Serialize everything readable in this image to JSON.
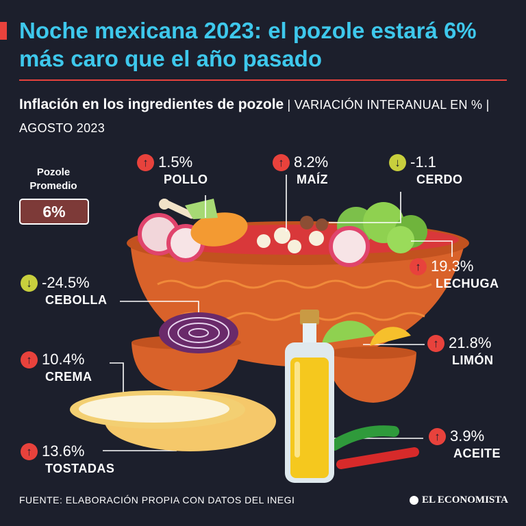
{
  "header": {
    "title": "Noche mexicana 2023: el pozole estará 6% más caro que el año pasado",
    "subtitle_strong": "Inflación en los ingredientes de pozole",
    "subtitle_rest": " | VARIACIÓN INTERANUAL EN % | AGOSTO 2023"
  },
  "average": {
    "label": "Pozole Promedio",
    "value": "6%"
  },
  "colors": {
    "background": "#1c1f2c",
    "title": "#3ec8ec",
    "increase": "#e8423c",
    "decrease": "#c8cf3d",
    "bowl": "#d9622a"
  },
  "chart_data": {
    "type": "bar",
    "title": "Inflación en los ingredientes de pozole",
    "subtitle": "VARIACIÓN INTERANUAL EN % | AGOSTO 2023",
    "categories": [
      "POLLO",
      "MAÍZ",
      "CERDO",
      "LECHUGA",
      "CEBOLLA",
      "LIMÓN",
      "CREMA",
      "TOSTADAS",
      "ACEITE"
    ],
    "values": [
      1.5,
      8.2,
      -1.1,
      19.3,
      -24.5,
      21.8,
      10.4,
      13.6,
      3.9
    ],
    "value_labels": [
      "1.5%",
      "8.2%",
      "-1.1",
      "19.3%",
      "-24.5%",
      "21.8%",
      "10.4%",
      "13.6%",
      "3.9%"
    ],
    "directions": [
      "up",
      "up",
      "down",
      "up",
      "down",
      "up",
      "up",
      "up",
      "up"
    ],
    "average_label": "Pozole Promedio",
    "average_value": 6
  },
  "footer": {
    "source": "FUENTE: ELABORACIÓN PROPIA CON DATOS DEL INEGI",
    "brand": "EL ECONOMISTA"
  }
}
